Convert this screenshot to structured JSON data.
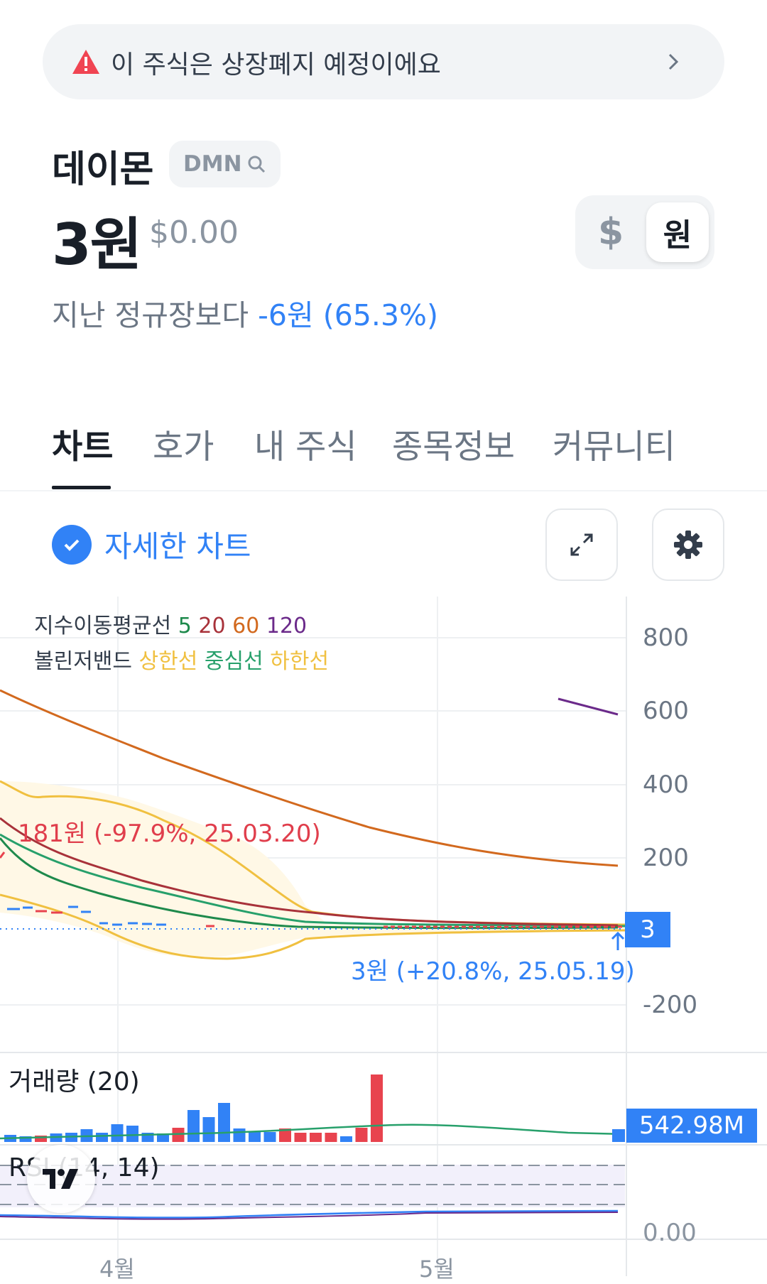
{
  "banner": {
    "text": "이 주식은 상장폐지 예정이에요"
  },
  "stock": {
    "name": "데이몬",
    "ticker": "DMN",
    "price": "3원",
    "price_usd": "$0.00",
    "change_prefix": "지난 정규장보다",
    "change_value": "-6원 (65.3%)"
  },
  "currency_toggle": {
    "usd": "$",
    "krw": "원",
    "selected": "원"
  },
  "tabs": [
    "차트",
    "호가",
    "내 주식",
    "종목정보",
    "커뮤니티"
  ],
  "chart_header": {
    "detail_label": "자세한 차트"
  },
  "chart_legend": {
    "ema_label": "지수이동평균선",
    "ema_periods": [
      "5",
      "20",
      "60",
      "120"
    ],
    "bb_label": "볼린저밴드",
    "bb_upper": "상한선",
    "bb_mid": "중심선",
    "bb_lower": "하한선"
  },
  "colors": {
    "ema5": "#1e8a4c",
    "ema20": "#a8323a",
    "ema60": "#d2691e",
    "ema120": "#6b2a8a",
    "bb_upper": "#f0c040",
    "bb_mid": "#27a06b",
    "bb_lower": "#f0c040",
    "up": "#e8434e",
    "down": "#3182f6",
    "accent": "#3182f6"
  },
  "annotations": {
    "high": "181원 (-97.9%, 25.03.20)",
    "low": "3원 (+20.8%, 25.05.19)"
  },
  "price_tag": "3",
  "volume_tag": "542.98M",
  "volume_title": "거래량 (20)",
  "rsi_title": "RSI (14, 14)",
  "rsi_zero_label": "0.00",
  "chart_data": {
    "type": "line",
    "y_ticks": [
      "800",
      "600",
      "400",
      "200",
      "-200"
    ],
    "x_ticks": [
      "4월",
      "5월"
    ],
    "ylim": [
      -200,
      800
    ],
    "series": [
      {
        "name": "120",
        "values": [
          640,
          600
        ]
      },
      {
        "name": "60",
        "values": [
          850,
          760,
          660,
          580,
          510,
          440,
          380,
          330,
          285,
          250,
          220,
          190
        ]
      },
      {
        "name": "20",
        "values": [
          260,
          190,
          140,
          110,
          80,
          55,
          40,
          30,
          20,
          15,
          12,
          10
        ]
      },
      {
        "name": "5",
        "values": [
          210,
          140,
          100,
          70,
          45,
          25,
          15,
          10,
          7,
          5,
          4,
          3
        ]
      }
    ],
    "volume_bars": [
      {
        "v": 0.1,
        "up": false
      },
      {
        "v": 0.08,
        "up": false
      },
      {
        "v": 0.09,
        "up": true
      },
      {
        "v": 0.12,
        "up": false
      },
      {
        "v": 0.13,
        "up": false
      },
      {
        "v": 0.18,
        "up": false
      },
      {
        "v": 0.13,
        "up": false
      },
      {
        "v": 0.25,
        "up": false
      },
      {
        "v": 0.23,
        "up": false
      },
      {
        "v": 0.13,
        "up": false
      },
      {
        "v": 0.12,
        "up": false
      },
      {
        "v": 0.2,
        "up": true
      },
      {
        "v": 0.45,
        "up": false
      },
      {
        "v": 0.35,
        "up": false
      },
      {
        "v": 0.55,
        "up": false
      },
      {
        "v": 0.19,
        "up": false
      },
      {
        "v": 0.14,
        "up": false
      },
      {
        "v": 0.14,
        "up": false
      },
      {
        "v": 0.19,
        "up": true
      },
      {
        "v": 0.13,
        "up": true
      },
      {
        "v": 0.13,
        "up": true
      },
      {
        "v": 0.13,
        "up": true
      },
      {
        "v": 0.08,
        "up": false
      },
      {
        "v": 0.2,
        "up": true
      },
      {
        "v": 0.95,
        "up": true
      }
    ],
    "last_volume": 542.98
  }
}
